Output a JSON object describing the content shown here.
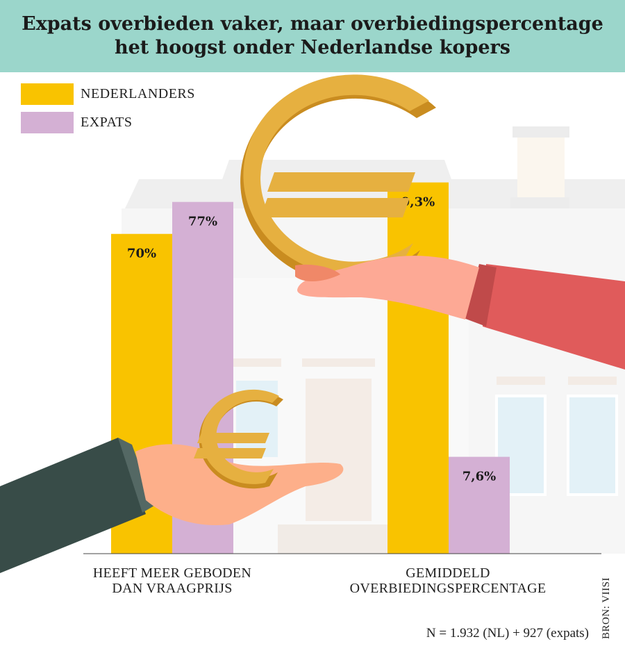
{
  "title": "Expats overbieden vaker, maar overbiedingspercentage het hoogst onder Nederlandse kopers",
  "colors": {
    "header": "#9bd6cb",
    "nederlanders": "#f9c300",
    "expats": "#d4b0d4",
    "euro": "#e6b040"
  },
  "chart_data": [
    {
      "type": "bar",
      "categories": [
        "HEEFT MEER GEBODEN DAN VRAAGPRIJS"
      ],
      "category_lines": [
        "HEEFT MEER GEBODEN",
        "DAN VRAAGPRIJS"
      ],
      "series": [
        {
          "name": "NEDERLANDERS",
          "values": [
            70
          ],
          "labels": [
            "70%"
          ]
        },
        {
          "name": "EXPATS",
          "values": [
            77
          ],
          "labels": [
            "77%"
          ]
        }
      ],
      "unit": "%",
      "ylim": [
        0,
        106
      ],
      "grid": false
    },
    {
      "type": "bar",
      "categories": [
        "GEMIDDELD OVERBIEDINGSPERCENTAGE"
      ],
      "category_lines": [
        "GEMIDDELD",
        "OVERBIEDINGSPERCENTAGE"
      ],
      "series": [
        {
          "name": "NEDERLANDERS",
          "values": [
            9.3
          ],
          "labels": [
            "9,3%"
          ]
        },
        {
          "name": "EXPATS",
          "values": [
            7.6
          ],
          "labels": [
            "7,6%"
          ]
        }
      ],
      "unit": "%",
      "ylim": [
        7,
        10
      ],
      "grid": false
    }
  ],
  "legend": [
    {
      "label": "NEDERLANDERS",
      "color": "#f9c300"
    },
    {
      "label": "EXPATS",
      "color": "#d4b0d4"
    }
  ],
  "legend_placement": "top-left",
  "note": "N = 1.932 (NL) + 927 (expats)",
  "source": "BRON: VIISI"
}
